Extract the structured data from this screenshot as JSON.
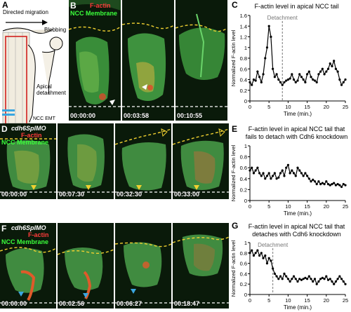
{
  "panel_letters": [
    "A",
    "B",
    "C",
    "D",
    "E",
    "F",
    "G"
  ],
  "schematic": {
    "label_directed": "Directed migration",
    "label_blebbing": "Blebbing",
    "label_apical": "Apical detachment",
    "label_nccemt": "NCC EMT"
  },
  "row_b": {
    "label_factin": "F-actin",
    "label_membrane": "NCC Membrane",
    "timestamps": [
      "00:00:00",
      "00:03:58",
      "00:10:55"
    ]
  },
  "row_d": {
    "label_morpholino": "cdh6SplMO",
    "label_factin": "F-actin",
    "label_membrane": "NCC Membrane",
    "timestamps": [
      "00:00:00",
      "00:07:30",
      "00:32:30",
      "00:33:00"
    ]
  },
  "row_f": {
    "label_morpholino": "cdh6SplMO",
    "label_factin": "F-actin",
    "label_membrane": "NCC Membrane",
    "timestamps": [
      "00:00:00",
      "00:02:56",
      "00:06:27",
      "00:18:47"
    ]
  },
  "chart_data": [
    {
      "type": "line",
      "title": "F-actin level in apical NCC tail",
      "xlabel": "Time (min.)",
      "ylabel": "Normalized F-actin level",
      "xlim": [
        0,
        25
      ],
      "ylim": [
        0,
        1.6
      ],
      "xticks": [
        0,
        5,
        10,
        15,
        20,
        25
      ],
      "yticks": [
        0,
        0.2,
        0.4,
        0.6,
        0.8,
        1.0,
        1.2,
        1.4,
        1.6
      ],
      "annotation": {
        "label": "Detachment",
        "x": 8.5
      },
      "x": [
        0,
        0.5,
        1,
        1.5,
        2,
        2.5,
        3,
        3.5,
        4,
        4.5,
        5,
        5.5,
        6,
        6.5,
        7,
        7.5,
        8,
        8.5,
        9,
        9.5,
        10,
        10.5,
        11,
        11.5,
        12,
        12.5,
        13,
        13.5,
        14,
        14.5,
        15,
        15.5,
        16,
        16.5,
        17,
        17.5,
        18,
        18.5,
        19,
        19.5,
        20,
        20.5,
        21,
        21.5,
        22,
        22.5,
        23,
        23.5,
        24,
        24.5,
        25
      ],
      "y": [
        0.35,
        0.3,
        0.4,
        0.38,
        0.55,
        0.45,
        0.35,
        0.5,
        0.8,
        1.0,
        1.4,
        1.2,
        0.6,
        0.45,
        0.5,
        0.4,
        0.35,
        0.3,
        0.35,
        0.38,
        0.4,
        0.42,
        0.5,
        0.4,
        0.35,
        0.38,
        0.5,
        0.45,
        0.4,
        0.35,
        0.5,
        0.55,
        0.45,
        0.4,
        0.38,
        0.35,
        0.5,
        0.55,
        0.6,
        0.5,
        0.55,
        0.6,
        0.7,
        0.65,
        0.75,
        0.6,
        0.55,
        0.4,
        0.3,
        0.35,
        0.4
      ]
    },
    {
      "type": "line",
      "title": "F-actin level in apical NCC tail that fails to detach with Cdh6 knockdown",
      "xlabel": "Time (min.)",
      "ylabel": "Normalized F-actin level",
      "xlim": [
        0,
        25
      ],
      "ylim": [
        0,
        1.0
      ],
      "xticks": [
        0,
        5,
        10,
        15,
        20,
        25
      ],
      "yticks": [
        0,
        0.2,
        0.4,
        0.6,
        0.8,
        1.0
      ],
      "x": [
        0,
        0.5,
        1,
        1.5,
        2,
        2.5,
        3,
        3.5,
        4,
        4.5,
        5,
        5.5,
        6,
        6.5,
        7,
        7.5,
        8,
        8.5,
        9,
        9.5,
        10,
        10.5,
        11,
        11.5,
        12,
        12.5,
        13,
        13.5,
        14,
        14.5,
        15,
        15.5,
        16,
        16.5,
        17,
        17.5,
        18,
        18.5,
        19,
        19.5,
        20,
        20.5,
        21,
        21.5,
        22,
        22.5,
        23,
        23.5,
        24,
        24.5,
        25
      ],
      "y": [
        0.55,
        0.6,
        0.5,
        0.55,
        0.6,
        0.5,
        0.45,
        0.5,
        0.4,
        0.45,
        0.5,
        0.4,
        0.45,
        0.5,
        0.4,
        0.42,
        0.5,
        0.55,
        0.45,
        0.6,
        0.65,
        0.5,
        0.55,
        0.5,
        0.45,
        0.6,
        0.55,
        0.5,
        0.45,
        0.5,
        0.45,
        0.4,
        0.35,
        0.38,
        0.35,
        0.3,
        0.35,
        0.3,
        0.32,
        0.3,
        0.35,
        0.3,
        0.28,
        0.3,
        0.32,
        0.28,
        0.3,
        0.28,
        0.25,
        0.3,
        0.28
      ]
    },
    {
      "type": "line",
      "title": "F-actin level in apical NCC tail that detaches with Cdh6 knockdown",
      "xlabel": "Time (min.)",
      "ylabel": "Normalized F-actin level",
      "xlim": [
        0,
        25
      ],
      "ylim": [
        0,
        1.0
      ],
      "xticks": [
        0,
        5,
        10,
        15,
        20,
        25
      ],
      "yticks": [
        0,
        0.2,
        0.4,
        0.6,
        0.8,
        1.0
      ],
      "annotation": {
        "label": "Detachment",
        "x": 6
      },
      "x": [
        0,
        0.5,
        1,
        1.5,
        2,
        2.5,
        3,
        3.5,
        4,
        4.5,
        5,
        5.5,
        6,
        6.5,
        7,
        7.5,
        8,
        8.5,
        9,
        9.5,
        10,
        10.5,
        11,
        11.5,
        12,
        12.5,
        13,
        13.5,
        14,
        14.5,
        15,
        15.5,
        16,
        16.5,
        17,
        17.5,
        18,
        18.5,
        19,
        19.5,
        20,
        20.5,
        21,
        21.5,
        22,
        22.5,
        23,
        23.5,
        24,
        24.5,
        25
      ],
      "y": [
        0.8,
        0.85,
        0.75,
        0.8,
        0.85,
        0.75,
        0.8,
        0.7,
        0.75,
        0.6,
        0.7,
        0.65,
        0.5,
        0.4,
        0.35,
        0.3,
        0.35,
        0.3,
        0.4,
        0.35,
        0.3,
        0.25,
        0.3,
        0.35,
        0.3,
        0.25,
        0.3,
        0.28,
        0.3,
        0.32,
        0.3,
        0.35,
        0.3,
        0.25,
        0.3,
        0.2,
        0.25,
        0.3,
        0.32,
        0.3,
        0.35,
        0.28,
        0.3,
        0.25,
        0.2,
        0.25,
        0.3,
        0.35,
        0.3,
        0.25,
        0.2
      ]
    }
  ]
}
